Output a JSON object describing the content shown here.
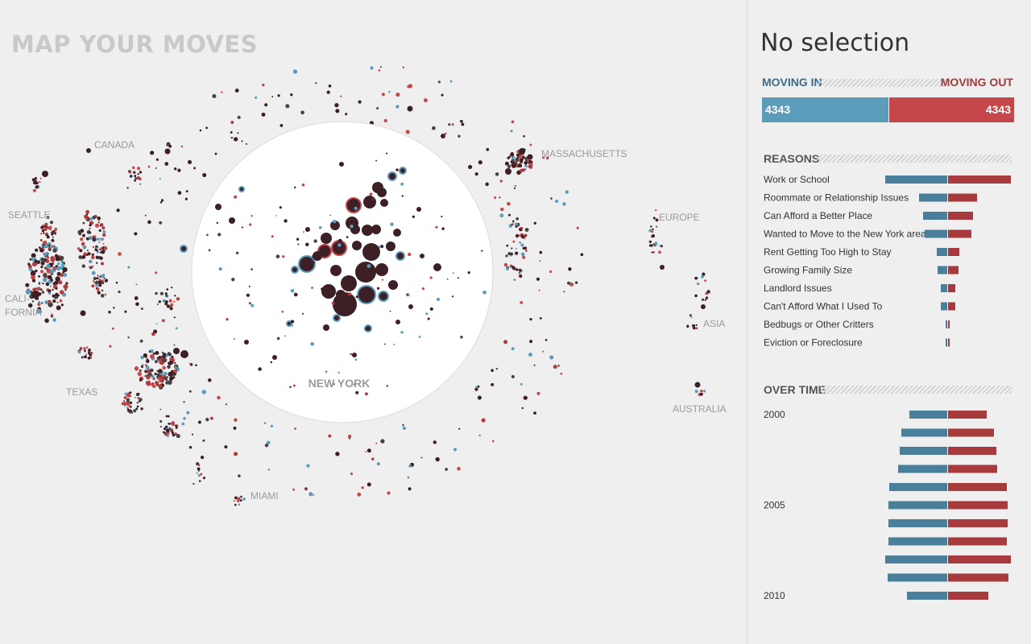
{
  "app": {
    "title": "MAP YOUR MOVES"
  },
  "colors": {
    "in": "#4a7f9b",
    "in_light": "#5b9cbb",
    "out": "#a63a3d",
    "out_light": "#c6474a",
    "dark": "#3d1f26"
  },
  "map": {
    "center_label": "NEW YORK",
    "regions": [
      "CANADA",
      "MASSACHUSETTS",
      "SEATTLE",
      "EUROPE",
      "CALI-",
      "FORNIA",
      "ASIA",
      "TEXAS",
      "AUSTRALIA",
      "MIAMI"
    ]
  },
  "panel": {
    "selection_title": "No selection",
    "moving_in_label": "MOVING IN",
    "moving_out_label": "MOVING OUT",
    "moving_in_value": "4343",
    "moving_out_value": "4343",
    "moving_in_count": 4343,
    "moving_out_count": 4343,
    "reasons_heading": "REASONS",
    "over_time_heading": "OVER TIME"
  },
  "chart_data": [
    {
      "type": "bar",
      "title": "REASONS",
      "categories": [
        "Work or School",
        "Roommate or Relationship Issues",
        "Can Afford a Better Place",
        "Wanted to Move to the New York area",
        "Rent Getting Too High to Stay",
        "Growing Family Size",
        "Landlord Issues",
        "Can't Afford What I Used To",
        "Bedbugs or Other Critters",
        "Eviction or Foreclosure"
      ],
      "series": [
        {
          "name": "Moving in",
          "values": [
            77,
            35,
            30,
            28,
            13,
            12,
            8,
            8,
            2,
            2
          ]
        },
        {
          "name": "Moving out",
          "values": [
            78,
            36,
            31,
            29,
            14,
            13,
            9,
            9,
            2,
            2
          ]
        }
      ]
    },
    {
      "type": "bar",
      "title": "OVER TIME",
      "year_labels": {
        "0": "2000",
        "5": "2005",
        "10": "2010"
      },
      "x": [
        2000,
        2001,
        2002,
        2003,
        2004,
        2005,
        2006,
        2007,
        2008,
        2009,
        2010
      ],
      "series": [
        {
          "name": "Moving in",
          "values": [
            47,
            57,
            59,
            61,
            72,
            73,
            73,
            73,
            77,
            74,
            50
          ]
        },
        {
          "name": "Moving out",
          "values": [
            48,
            57,
            60,
            61,
            73,
            74,
            74,
            73,
            78,
            75,
            50
          ]
        }
      ]
    }
  ]
}
